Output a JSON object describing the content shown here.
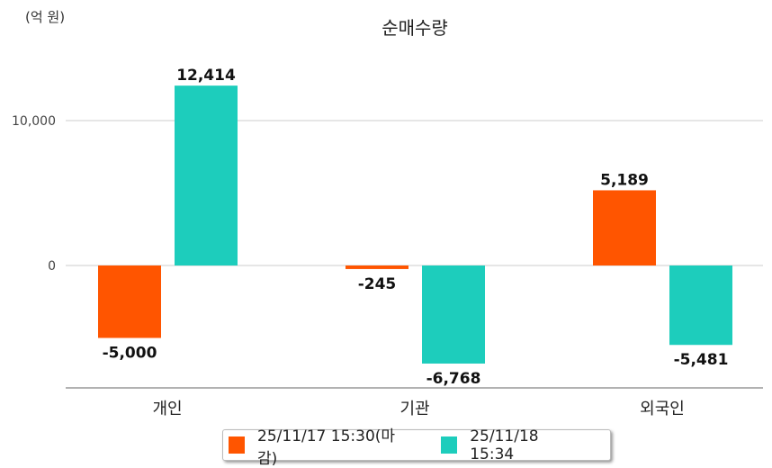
{
  "chart_data": {
    "type": "bar",
    "title": "순매수량",
    "unit_label": "(억 원)",
    "categories": [
      "개인",
      "기관",
      "외국인"
    ],
    "series": [
      {
        "name": "25/11/17 15:30(마감)",
        "color": "#ff5500",
        "values": [
          -5000,
          -245,
          5189
        ],
        "labels": [
          "-5,000",
          "-245",
          "5,189"
        ]
      },
      {
        "name": "25/11/18 15:34",
        "color": "#1dcdbc",
        "values": [
          12414,
          -6768,
          -5481
        ],
        "labels": [
          "12,414",
          "-6,768",
          "-5,481"
        ]
      }
    ],
    "yticks": [
      0,
      10000
    ],
    "ytick_labels": [
      "0",
      "10,000"
    ],
    "ylim": [
      -8450,
      15500
    ],
    "grid": true,
    "legend": "bottom"
  }
}
